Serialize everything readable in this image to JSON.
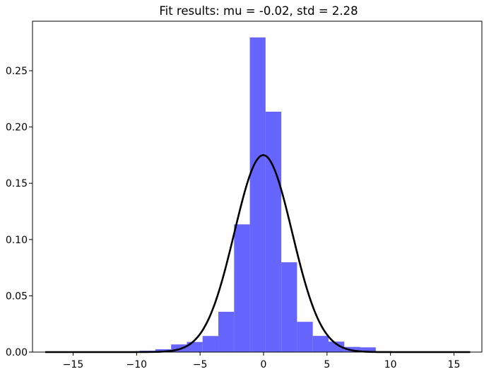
{
  "chart_data": {
    "type": "bar",
    "title": "Fit results: mu = -0.02,  std = 2.28",
    "xlabel": "",
    "ylabel": "",
    "xlim": [
      -18.2,
      17.2
    ],
    "ylim": [
      0,
      0.294
    ],
    "grid": false,
    "xticks": [
      {
        "value": -15,
        "label": "−15"
      },
      {
        "value": -10,
        "label": "−10"
      },
      {
        "value": -5,
        "label": "−5"
      },
      {
        "value": 0,
        "label": "0"
      },
      {
        "value": 5,
        "label": "5"
      },
      {
        "value": 10,
        "label": "10"
      },
      {
        "value": 15,
        "label": "15"
      }
    ],
    "yticks": [
      {
        "value": 0.0,
        "label": "0.00"
      },
      {
        "value": 0.05,
        "label": "0.05"
      },
      {
        "value": 0.1,
        "label": "0.10"
      },
      {
        "value": 0.15,
        "label": "0.15"
      },
      {
        "value": 0.2,
        "label": "0.20"
      },
      {
        "value": 0.25,
        "label": "0.25"
      }
    ],
    "histogram": {
      "color": "#6666ff",
      "bin_edges": [
        -17.2,
        -15.96,
        -14.72,
        -13.48,
        -12.24,
        -11.0,
        -9.76,
        -8.52,
        -7.28,
        -6.04,
        -4.8,
        -3.56,
        -2.32,
        -1.08,
        0.16,
        1.4,
        2.64,
        3.88,
        5.12,
        6.36,
        7.6,
        8.84,
        10.08,
        11.32,
        12.56,
        13.8,
        15.04,
        16.28
      ],
      "densities": [
        0.0003,
        0.0003,
        0.0003,
        0.0003,
        0.0003,
        0.0003,
        0.0012,
        0.0025,
        0.0068,
        0.009,
        0.0143,
        0.0358,
        0.1135,
        0.2796,
        0.2136,
        0.0798,
        0.0269,
        0.0144,
        0.0093,
        0.0046,
        0.0042,
        0.0006,
        0.0003,
        0.0003,
        0.0003,
        0.0003,
        0.0003
      ]
    },
    "fit": {
      "type": "normal_pdf",
      "mu": -0.02,
      "std": 2.28,
      "x_range": [
        -17.2,
        16.28
      ],
      "color": "#000000"
    }
  }
}
